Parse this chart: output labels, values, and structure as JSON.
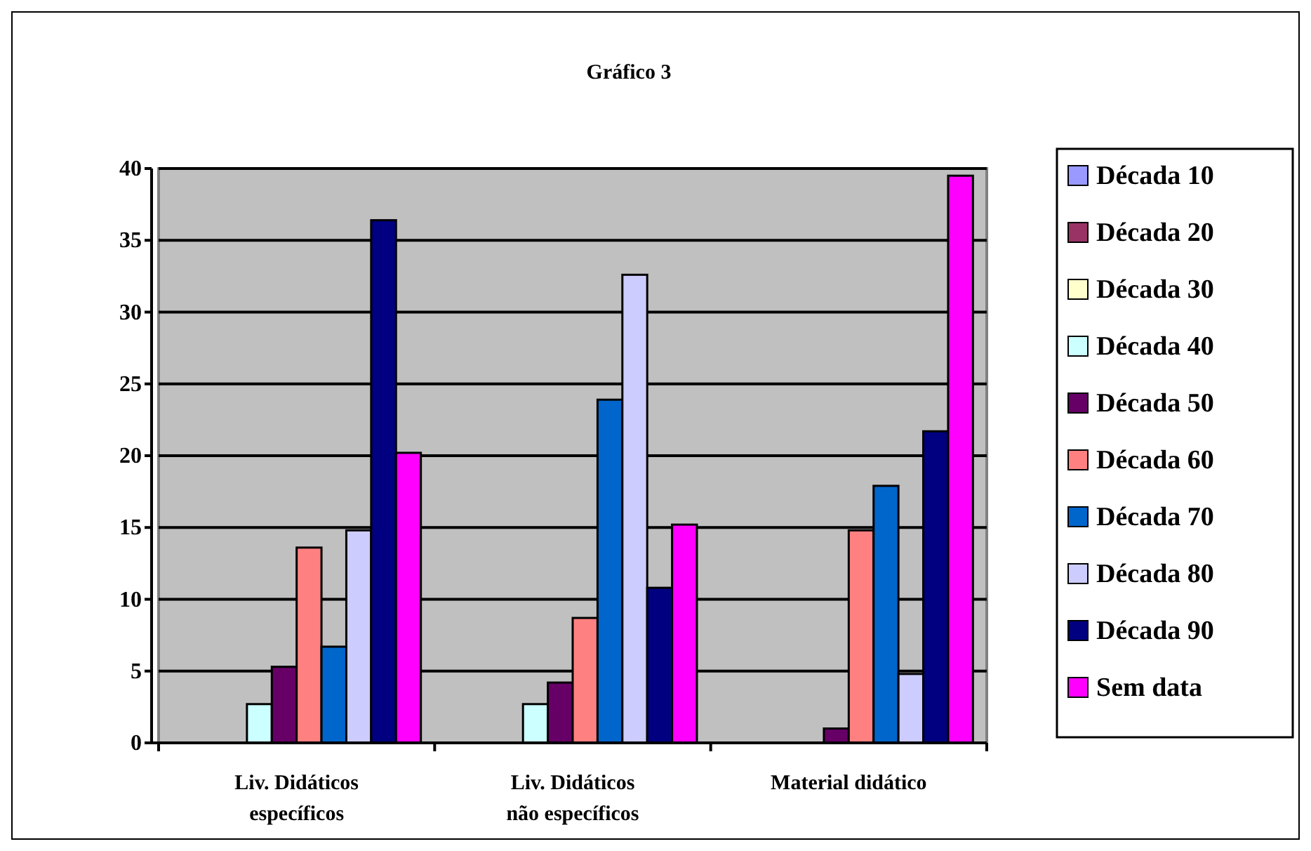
{
  "chart_data": {
    "type": "bar",
    "title": "Gráfico 3",
    "categories": [
      "Liv. Didáticos específicos",
      "Liv. Didáticos não específicos",
      "Material didático"
    ],
    "series": [
      {
        "name": "Década 10",
        "color": "#9999ff",
        "values": [
          0,
          0,
          0
        ]
      },
      {
        "name": "Década 20",
        "color": "#993366",
        "values": [
          0,
          0,
          0
        ]
      },
      {
        "name": "Década 30",
        "color": "#ffffcc",
        "values": [
          0,
          0,
          0
        ]
      },
      {
        "name": "Década 40",
        "color": "#ccffff",
        "values": [
          2.7,
          2.7,
          0
        ]
      },
      {
        "name": "Década 50",
        "color": "#660066",
        "values": [
          5.3,
          4.2,
          1
        ]
      },
      {
        "name": "Década 60",
        "color": "#ff8080",
        "values": [
          13.6,
          8.7,
          14.8
        ]
      },
      {
        "name": "Década 70",
        "color": "#0066cc",
        "values": [
          6.7,
          23.9,
          17.9
        ]
      },
      {
        "name": "Década 80",
        "color": "#ccccff",
        "values": [
          14.8,
          32.6,
          4.8
        ]
      },
      {
        "name": "Década 90",
        "color": "#000080",
        "values": [
          36.4,
          10.8,
          21.7
        ]
      },
      {
        "name": "Sem data",
        "color": "#ff00ff",
        "values": [
          20.2,
          15.2,
          39.5
        ]
      }
    ],
    "ylim": [
      0,
      40
    ],
    "yticks": [
      0,
      5,
      10,
      15,
      20,
      25,
      30,
      35,
      40
    ],
    "grid": "y",
    "legend": "right"
  }
}
